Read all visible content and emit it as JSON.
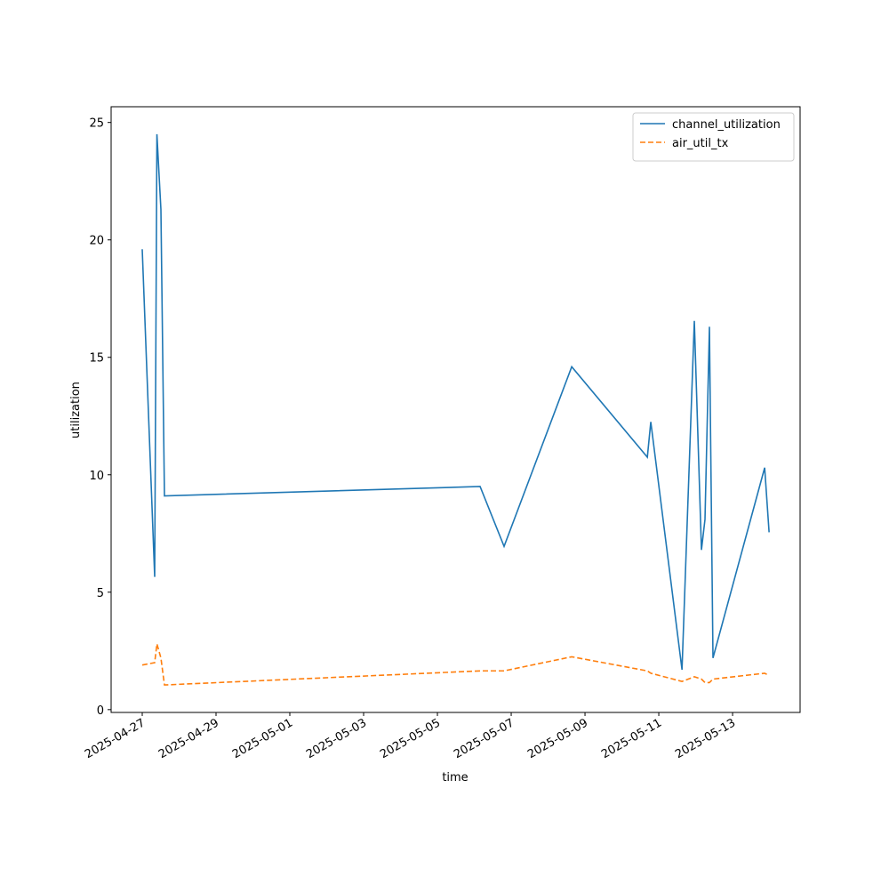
{
  "chart_data": {
    "type": "line",
    "xlabel": "time",
    "ylabel": "utilization",
    "x": [
      "2025-04-27T00:00",
      "2025-04-27T08:06",
      "2025-04-27T09:33",
      "2025-04-27T12:09",
      "2025-04-27T14:27",
      "2025-05-06T03:46",
      "2025-05-06T19:22",
      "2025-05-08T15:22",
      "2025-05-10T16:33",
      "2025-05-10T18:48",
      "2025-05-11T15:06",
      "2025-05-11T23:07",
      "2025-05-12T03:45",
      "2025-05-12T06:03",
      "2025-05-12T08:56",
      "2025-05-12T11:15",
      "2025-05-13T20:52",
      "2025-05-13T23:45"
    ],
    "series": [
      {
        "name": "channel_utilization",
        "color": "#1f77b4",
        "linestyle": "solid",
        "values": [
          19.6,
          5.65,
          24.5,
          21.3,
          9.1,
          9.5,
          6.95,
          14.6,
          10.75,
          12.25,
          1.7,
          16.55,
          6.8,
          8.1,
          16.3,
          2.2,
          10.3,
          7.55
        ]
      },
      {
        "name": "air_util_tx",
        "color": "#ff7f0e",
        "linestyle": "dashed",
        "values": [
          1.9,
          2.0,
          2.8,
          2.2,
          1.05,
          1.65,
          1.65,
          2.25,
          1.65,
          1.55,
          1.2,
          1.4,
          1.3,
          1.15,
          1.15,
          1.3,
          1.55,
          1.45
        ]
      }
    ],
    "xlim": [
      "2025-04-26T03:46",
      "2025-05-14T19:55"
    ],
    "xticks": [
      "2025-04-27",
      "2025-04-29",
      "2025-05-01",
      "2025-05-03",
      "2025-05-05",
      "2025-05-07",
      "2025-05-09",
      "2025-05-11",
      "2025-05-13"
    ],
    "ylim": [
      -0.12,
      25.67
    ],
    "yticks": [
      0,
      5,
      10,
      15,
      20,
      25
    ],
    "grid": false,
    "legend": "upper right"
  }
}
